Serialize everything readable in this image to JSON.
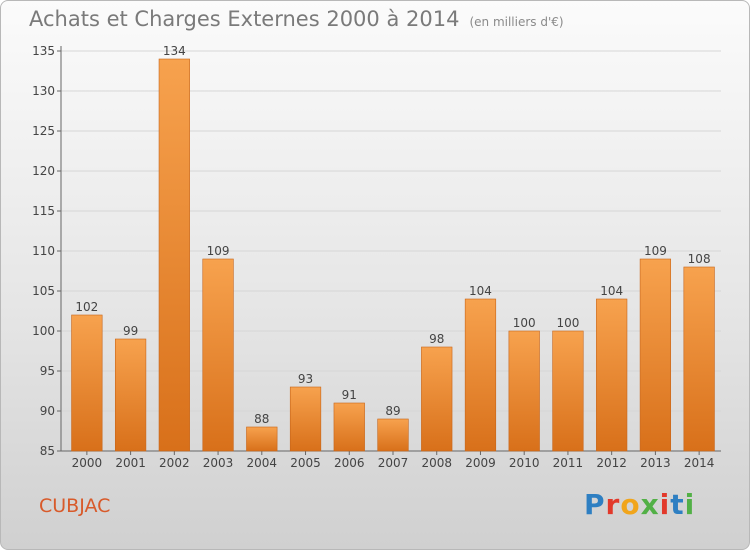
{
  "chart_data": {
    "type": "bar",
    "title": "Achats et Charges Externes 2000 à 2014",
    "subtitle": "(en milliers d'€)",
    "categories": [
      "2000",
      "2001",
      "2002",
      "2003",
      "2004",
      "2005",
      "2006",
      "2007",
      "2008",
      "2009",
      "2010",
      "2011",
      "2012",
      "2013",
      "2014"
    ],
    "values": [
      102,
      99,
      134,
      109,
      88,
      93,
      91,
      89,
      98,
      104,
      100,
      100,
      104,
      109,
      108
    ],
    "ylim": [
      85,
      135
    ],
    "yticks": [
      85,
      90,
      95,
      100,
      105,
      110,
      115,
      120,
      125,
      130,
      135
    ],
    "grid": true,
    "colors": {
      "bar_top": "#f7a24e",
      "bar_bottom": "#d8701a",
      "bar_edge": "#c7651a"
    }
  },
  "commune": "CUBJAC",
  "logo": {
    "letters": [
      {
        "ch": "P",
        "color": "#2e7fc2"
      },
      {
        "ch": "r",
        "color": "#e2392b"
      },
      {
        "ch": "o",
        "color": "#f1a51b"
      },
      {
        "ch": "x",
        "color": "#52b046"
      },
      {
        "ch": "i",
        "color": "#e2392b"
      },
      {
        "ch": "t",
        "color": "#2e7fc2"
      },
      {
        "ch": "i",
        "color": "#52b046"
      }
    ]
  }
}
